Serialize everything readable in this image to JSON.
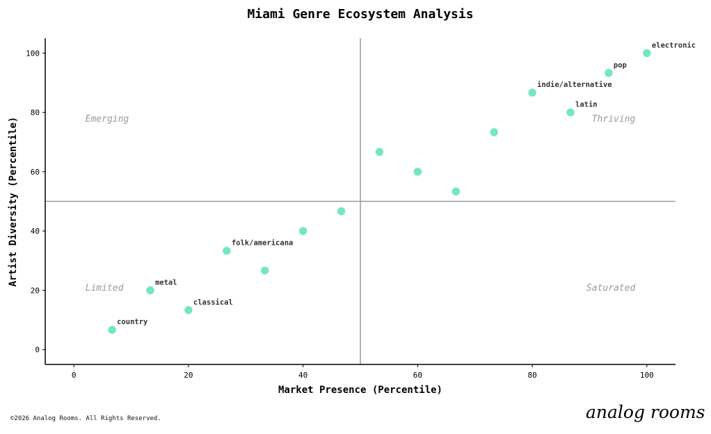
{
  "chart_data": {
    "type": "scatter",
    "title": "Miami Genre Ecosystem Analysis",
    "xlabel": "Market Presence (Percentile)",
    "ylabel": "Artist Diversity (Percentile)",
    "xlim": [
      -5,
      105
    ],
    "ylim": [
      -5,
      105
    ],
    "xticks": [
      0,
      20,
      40,
      60,
      80,
      100
    ],
    "yticks": [
      0,
      20,
      40,
      60,
      80,
      100
    ],
    "grid": false,
    "reference_lines": {
      "x": 50,
      "y": 50
    },
    "quadrant_labels": [
      {
        "text": "Emerging",
        "x": 2,
        "y": 78
      },
      {
        "text": "Thriving",
        "x": 98,
        "y": 78
      },
      {
        "text": "Limited",
        "x": 2,
        "y": 21
      },
      {
        "text": "Saturated",
        "x": 98,
        "y": 21
      }
    ],
    "point_color": "#6ee7b7",
    "points": [
      {
        "x": 6.67,
        "y": 6.67,
        "label": "country"
      },
      {
        "x": 13.33,
        "y": 20,
        "label": "metal"
      },
      {
        "x": 20,
        "y": 13.33,
        "label": "classical"
      },
      {
        "x": 26.67,
        "y": 33.33,
        "label": "folk/americana"
      },
      {
        "x": 33.33,
        "y": 26.67,
        "label": ""
      },
      {
        "x": 40,
        "y": 40,
        "label": ""
      },
      {
        "x": 46.67,
        "y": 46.67,
        "label": ""
      },
      {
        "x": 53.33,
        "y": 66.67,
        "label": ""
      },
      {
        "x": 60,
        "y": 60,
        "label": ""
      },
      {
        "x": 66.67,
        "y": 53.33,
        "label": ""
      },
      {
        "x": 73.33,
        "y": 73.33,
        "label": ""
      },
      {
        "x": 80,
        "y": 86.67,
        "label": "indie/alternative"
      },
      {
        "x": 86.67,
        "y": 80,
        "label": "latin"
      },
      {
        "x": 93.33,
        "y": 93.33,
        "label": "pop"
      },
      {
        "x": 100,
        "y": 100,
        "label": "electronic"
      }
    ]
  },
  "footer": {
    "copyright": "©2026 Analog Rooms. All Rights Reserved."
  },
  "logo": {
    "text": "analog rooms"
  }
}
